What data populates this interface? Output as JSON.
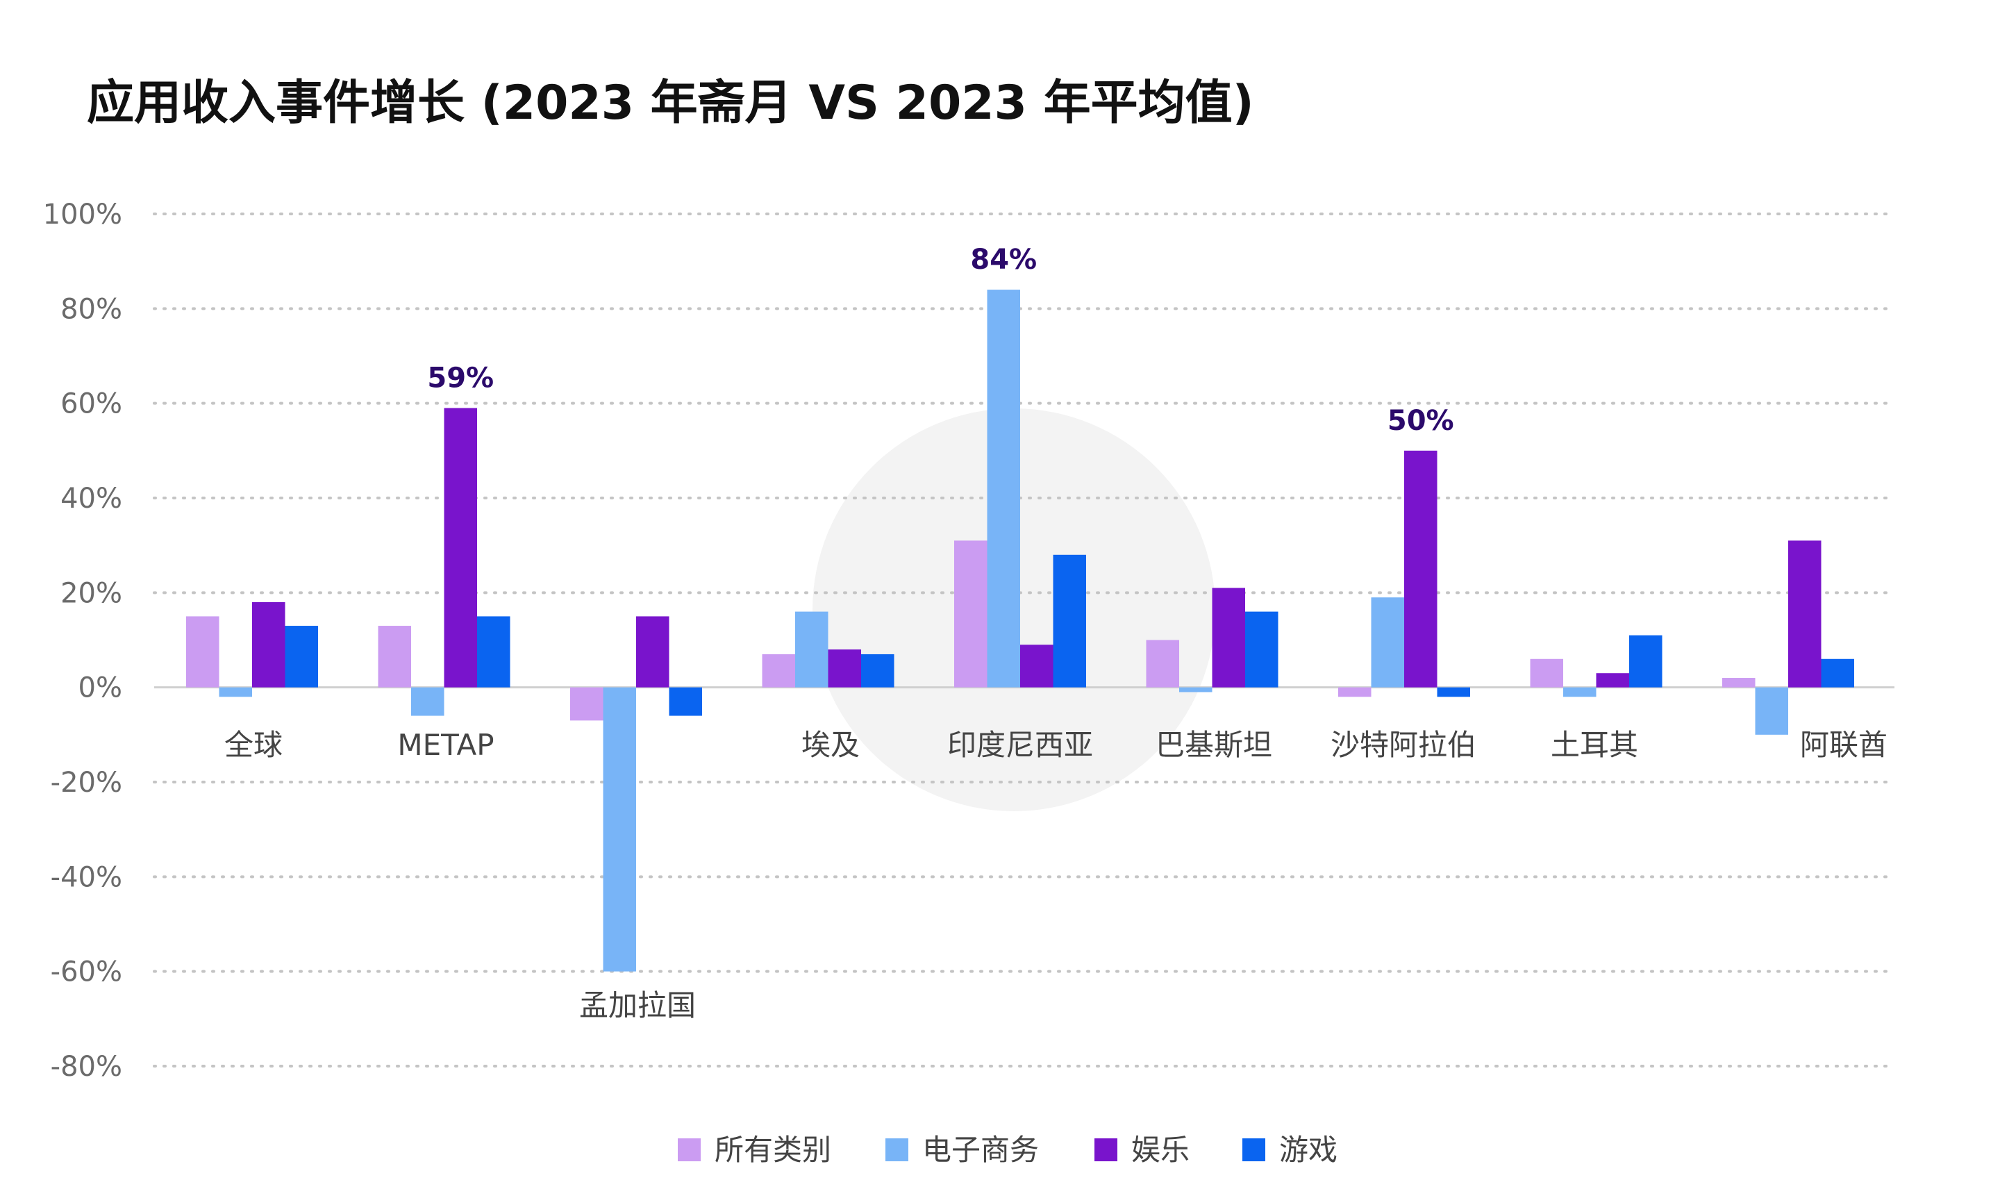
{
  "chart_data": {
    "type": "bar",
    "title": "应用收入事件增长 (2023 年斋月 VS 2023 年平均值)",
    "xlabel": "",
    "ylabel": "",
    "ylim": [
      -80,
      100
    ],
    "yticks": [
      100,
      80,
      60,
      40,
      20,
      0,
      -20,
      -40,
      -60,
      -80
    ],
    "ytick_labels": [
      "100%",
      "80%",
      "60%",
      "40%",
      "20%",
      "0%",
      "-20%",
      "-40%",
      "-60%",
      "-80%"
    ],
    "grid": true,
    "legend_position": "bottom-center",
    "categories": [
      "全球",
      "METAP",
      "孟加拉国",
      "埃及",
      "印度尼西亚",
      "巴基斯坦",
      "沙特阿拉伯",
      "土耳其",
      "阿联酋"
    ],
    "series": [
      {
        "name": "所有类别",
        "color": "#cb9cf2",
        "values": [
          15,
          13,
          -7,
          7,
          31,
          10,
          -2,
          6,
          2
        ]
      },
      {
        "name": "电子商务",
        "color": "#78b4f7",
        "values": [
          -2,
          -6,
          -60,
          16,
          84,
          -1,
          19,
          -2,
          -10
        ]
      },
      {
        "name": "娱乐",
        "color": "#7914cc",
        "values": [
          18,
          59,
          15,
          8,
          9,
          21,
          50,
          3,
          31
        ]
      },
      {
        "name": "游戏",
        "color": "#0a64f0",
        "values": [
          13,
          15,
          -6,
          7,
          28,
          16,
          -2,
          11,
          6
        ]
      }
    ],
    "annotations": [
      {
        "category": "METAP",
        "series": "娱乐",
        "text": "59%"
      },
      {
        "category": "印度尼西亚",
        "series": "电子商务",
        "text": "84%"
      },
      {
        "category": "沙特阿拉伯",
        "series": "娱乐",
        "text": "50%"
      }
    ]
  }
}
